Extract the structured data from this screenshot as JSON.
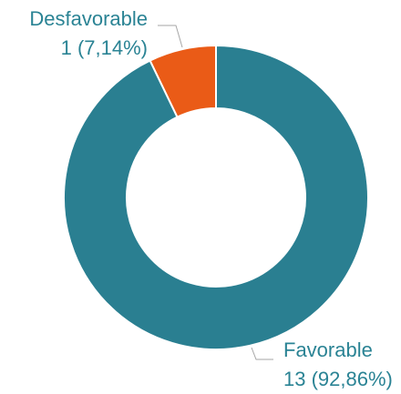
{
  "chart_data": {
    "type": "pie",
    "donut": true,
    "title": "",
    "legend": "none",
    "label_color": "#2a8394",
    "slices": [
      {
        "name": "Desfavorable",
        "value": 1,
        "value_label": "1 (7,14%)",
        "color": "#ea5b17"
      },
      {
        "name": "Favorable",
        "value": 13,
        "value_label": "13 (92,86%)",
        "color": "#2a7f91"
      }
    ]
  }
}
